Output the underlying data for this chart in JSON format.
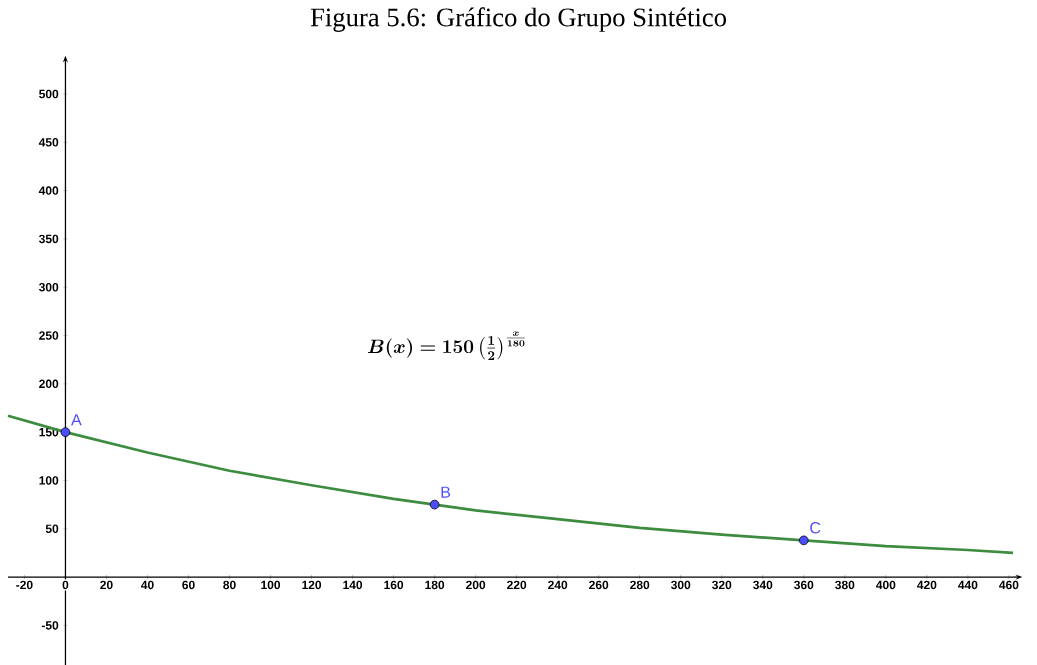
{
  "chart_data": {
    "type": "line",
    "title": "Figura 5.6: Gráfico do Grupo Sintético",
    "xlim": [
      -28,
      462
    ],
    "ylim": [
      -91,
      530
    ],
    "xticks": [
      -20,
      0,
      20,
      40,
      60,
      80,
      100,
      120,
      140,
      160,
      180,
      200,
      220,
      240,
      260,
      280,
      300,
      320,
      340,
      360,
      380,
      400,
      420,
      440,
      460
    ],
    "yticks": [
      -50,
      50,
      100,
      150,
      200,
      250,
      300,
      350,
      400,
      450,
      500
    ],
    "grid": false,
    "series": [
      {
        "color": "#3d8c40",
        "marker": "none",
        "x": [
          -28,
          0,
          40,
          80,
          120,
          160,
          180,
          200,
          240,
          280,
          320,
          360,
          400,
          440,
          462
        ],
        "values": [
          167,
          150,
          129,
          110,
          95,
          81,
          75,
          69,
          60,
          51,
          44,
          38,
          32,
          28,
          25
        ]
      },
      {
        "type": "scatter",
        "color": "#4d4dff",
        "marker": "circle",
        "x": [
          0,
          180,
          360
        ],
        "values": [
          150,
          75,
          38
        ]
      }
    ],
    "annotations": [
      {
        "text": "A",
        "x": 0,
        "y": 150
      },
      {
        "text": "B",
        "x": 180,
        "y": 75
      },
      {
        "text": "C",
        "x": 360,
        "y": 38
      },
      "\\boldsymbol{B(x) = 150\\left(\\frac{1}{2}\\right)^{\\frac{x}{180}}}"
    ]
  }
}
